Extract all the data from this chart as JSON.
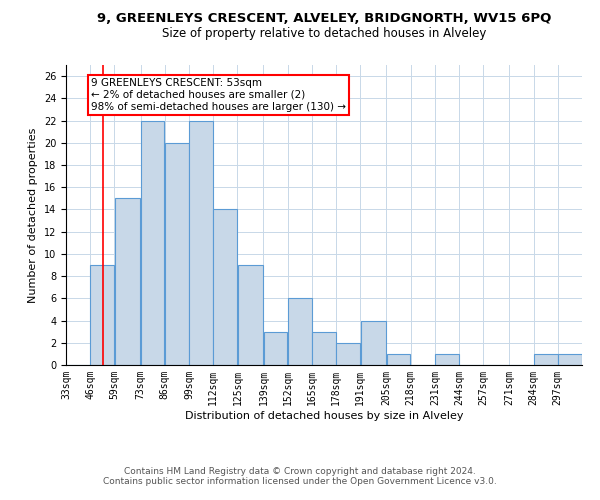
{
  "title1": "9, GREENLEYS CRESCENT, ALVELEY, BRIDGNORTH, WV15 6PQ",
  "title2": "Size of property relative to detached houses in Alveley",
  "xlabel": "Distribution of detached houses by size in Alveley",
  "ylabel": "Number of detached properties",
  "footer1": "Contains HM Land Registry data © Crown copyright and database right 2024.",
  "footer2": "Contains public sector information licensed under the Open Government Licence v3.0.",
  "bin_labels": [
    "33sqm",
    "46sqm",
    "59sqm",
    "73sqm",
    "86sqm",
    "99sqm",
    "112sqm",
    "125sqm",
    "139sqm",
    "152sqm",
    "165sqm",
    "178sqm",
    "191sqm",
    "205sqm",
    "218sqm",
    "231sqm",
    "244sqm",
    "257sqm",
    "271sqm",
    "284sqm",
    "297sqm"
  ],
  "bin_edges": [
    33,
    46,
    59,
    73,
    86,
    99,
    112,
    125,
    139,
    152,
    165,
    178,
    191,
    205,
    218,
    231,
    244,
    257,
    271,
    284,
    297,
    310
  ],
  "values": [
    0,
    9,
    15,
    22,
    20,
    22,
    14,
    9,
    3,
    6,
    3,
    2,
    4,
    1,
    0,
    1,
    0,
    0,
    0,
    1,
    1
  ],
  "bar_color": "#c8d8e8",
  "bar_edge_color": "#5b9bd5",
  "bar_edge_width": 0.8,
  "red_line_x": 53,
  "annotation_text": "9 GREENLEYS CRESCENT: 53sqm\n← 2% of detached houses are smaller (2)\n98% of semi-detached houses are larger (130) →",
  "annotation_box_color": "white",
  "annotation_box_edge_color": "red",
  "ylim": [
    0,
    27
  ],
  "yticks": [
    0,
    2,
    4,
    6,
    8,
    10,
    12,
    14,
    16,
    18,
    20,
    22,
    24,
    26
  ],
  "background_color": "white",
  "grid_color": "#c8d8e8",
  "title1_fontsize": 9.5,
  "title2_fontsize": 8.5,
  "axis_label_fontsize": 8,
  "tick_fontsize": 7,
  "footer_fontsize": 6.5,
  "annot_fontsize": 7.5
}
